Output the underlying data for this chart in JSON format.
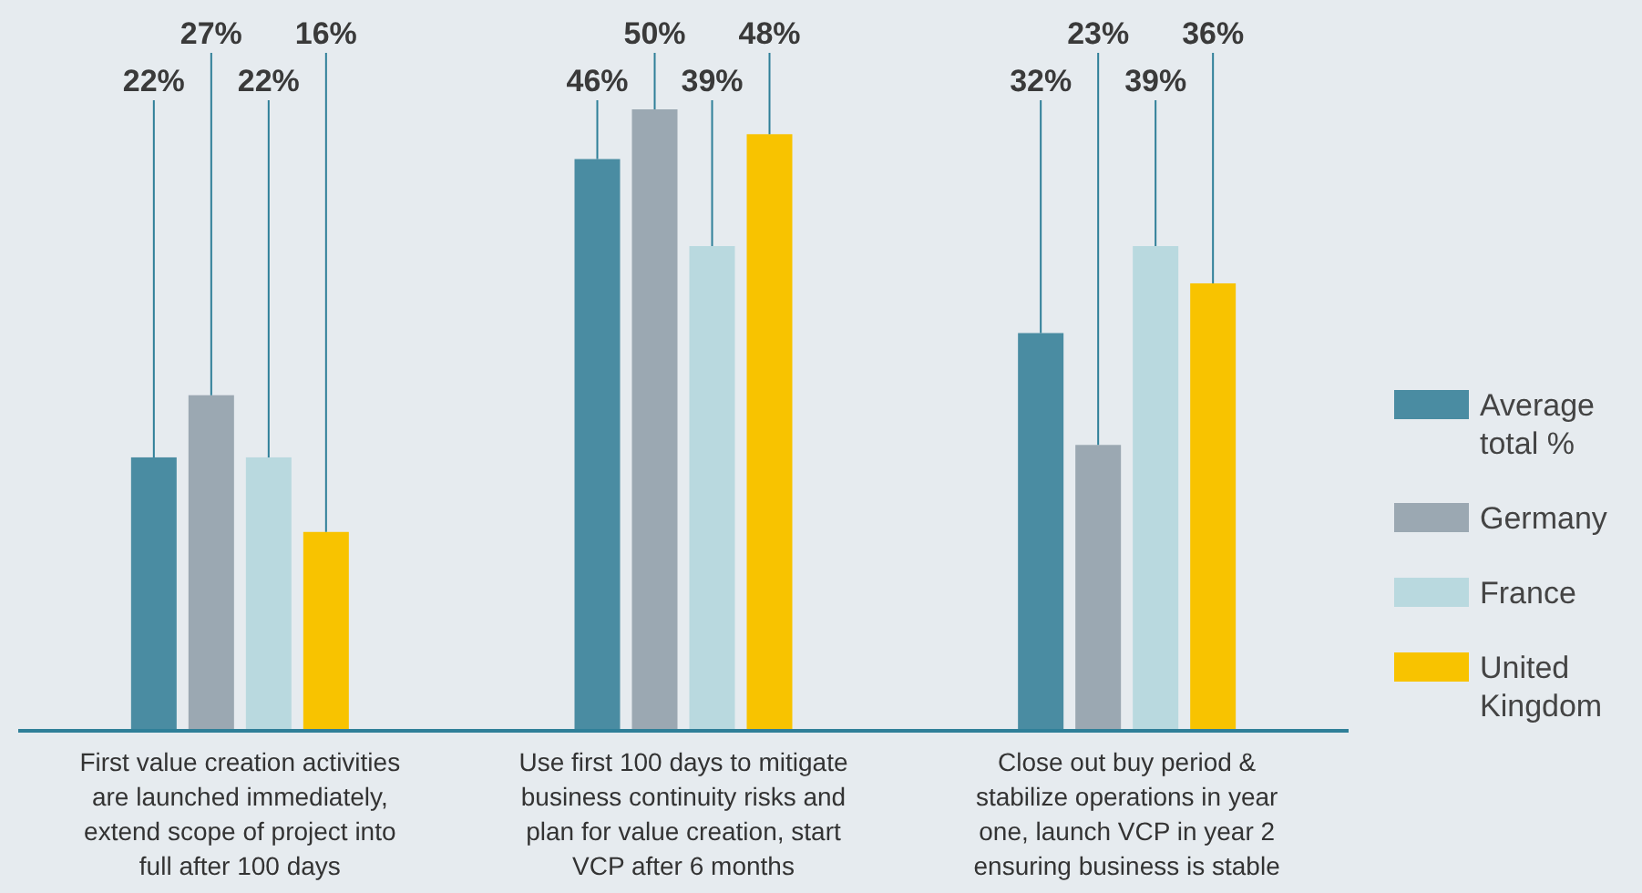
{
  "chart_data": {
    "type": "bar",
    "categories": [
      "First value creation activities are launched immediately, extend scope of project into full after 100 days",
      "Use first 100 days to mitigate business continuity risks and plan for value creation, start VCP after 6 months",
      "Close out buy period & stabilize operations in year one, launch VCP in year 2 ensuring business is stable"
    ],
    "series": [
      {
        "name": "Average total %",
        "color": "#4a8ca2",
        "values": [
          22,
          46,
          32
        ],
        "value_labels": [
          "22%",
          "46%",
          "32%"
        ]
      },
      {
        "name": "Germany",
        "color": "#9ba8b2",
        "values": [
          27,
          50,
          23
        ],
        "value_labels": [
          "27%",
          "50%",
          "23%"
        ]
      },
      {
        "name": "France",
        "color": "#b9d9df",
        "values": [
          22,
          39,
          39
        ],
        "value_labels": [
          "22%",
          "39%",
          "39%"
        ]
      },
      {
        "name": "United Kingdom",
        "color": "#f8c300",
        "values": [
          16,
          48,
          36
        ],
        "value_labels": [
          "16%",
          "48%",
          "36%"
        ]
      }
    ],
    "legend": "right"
  }
}
